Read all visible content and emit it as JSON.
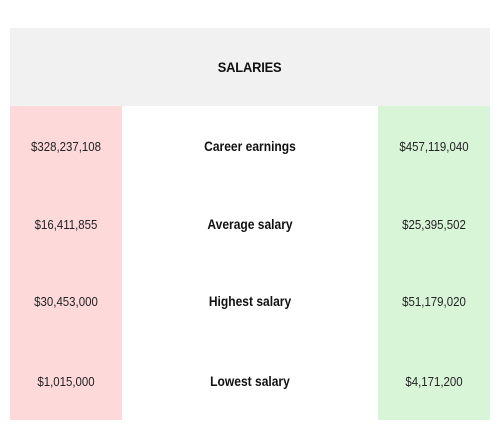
{
  "header": {
    "title": "SALARIES"
  },
  "colors": {
    "header_bg": "#f1f1f1",
    "left_column_bg": "#fdd9da",
    "right_column_bg": "#d9f5d7"
  },
  "rows": [
    {
      "left": "$328,237,108",
      "label": "Career earnings",
      "right": "$457,119,040"
    },
    {
      "left": "$16,411,855",
      "label": "Average salary",
      "right": "$25,395,502"
    },
    {
      "left": "$30,453,000",
      "label": "Highest salary",
      "right": "$51,179,020"
    },
    {
      "left": "$1,015,000",
      "label": "Lowest salary",
      "right": "$4,171,200"
    }
  ]
}
